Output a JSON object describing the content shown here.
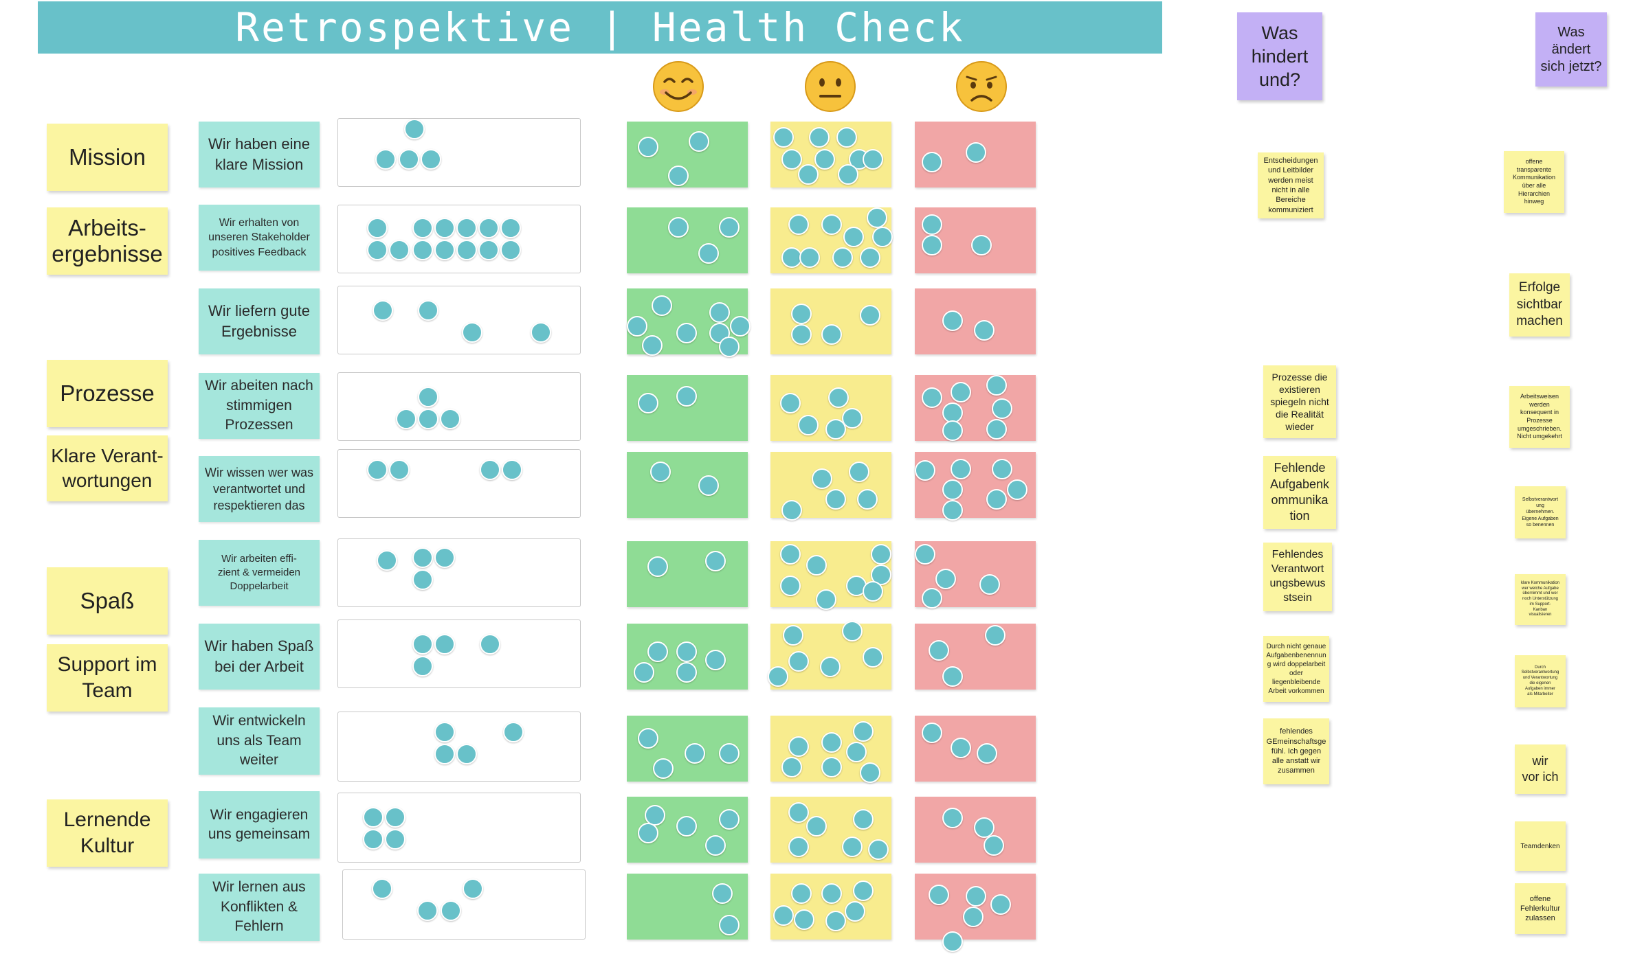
{
  "header": {
    "title": "Retrospektive | Health Check"
  },
  "moods": [
    "happy-face-icon",
    "neutral-face-icon",
    "sad-face-icon"
  ],
  "categories": {
    "mission": "Mission",
    "arbeit1": "Arbeits-",
    "arbeit2": "ergebnisse",
    "prozesse": "Prozesse",
    "klare1": "Klare Verant-",
    "klare2": "wortungen",
    "spass": "Spaß",
    "support1": "Support im",
    "support2": "Team",
    "lern1": "Lernende",
    "lern2": "Kultur"
  },
  "questions": [
    {
      "l1": "Wir haben eine",
      "l2": "klare Mission",
      "l3": ""
    },
    {
      "l1": "Wir erhalten von",
      "l2": "unseren Stakeholder",
      "l3": "positives Feedback"
    },
    {
      "l1": "Wir liefern gute",
      "l2": "Ergebnisse",
      "l3": ""
    },
    {
      "l1": "Wir abeiten nach",
      "l2": "stimmigen",
      "l3": "Prozessen"
    },
    {
      "l1": "Wir wissen wer was",
      "l2": "verantwortet und",
      "l3": "respektieren das"
    },
    {
      "l1": "Wir arbeiten effi-",
      "l2": "zient & vermeiden",
      "l3": "Doppelarbeit"
    },
    {
      "l1": "Wir haben Spaß",
      "l2": "bei der Arbeit",
      "l3": ""
    },
    {
      "l1": "Wir entwickeln",
      "l2": "uns als Team",
      "l3": "weiter"
    },
    {
      "l1": "Wir engagieren",
      "l2": "uns gemeinsam",
      "l3": ""
    },
    {
      "l1": "Wir lernen aus",
      "l2": "Konflikten &",
      "l3": "Fehlern"
    }
  ],
  "columns": {
    "hindert": {
      "l1": "Was",
      "l2": "hindert",
      "l3": "und?"
    },
    "aendert": {
      "l1": "Was",
      "l2": "ändert",
      "l3": "sich jetzt?"
    }
  },
  "hindert_notes": [
    {
      "l": [
        "Entscheidungen",
        "und Leitbilder",
        "werden meist",
        "nicht in alle",
        "Bereiche",
        "kommuniziert"
      ]
    },
    {
      "l": [
        "Prozesse die",
        "existieren",
        "spiegeln nicht",
        "die Realität",
        "wieder"
      ]
    },
    {
      "l": [
        "Fehlende",
        "Aufgabenk",
        "ommunika",
        "tion"
      ]
    },
    {
      "l": [
        "Fehlendes",
        "Verantwort",
        "ungsbewus",
        "stsein"
      ]
    },
    {
      "l": [
        "Durch nicht genaue",
        "Aufgabenbenennun",
        "g wird doppelarbeit",
        "oder",
        "liegenbleibende",
        "Arbeit vorkommen"
      ]
    },
    {
      "l": [
        "fehlendes",
        "GEmeinschaftsge",
        "fühl. Ich gegen",
        "alle anstatt wir",
        "zusammen"
      ]
    }
  ],
  "aendert_notes": [
    {
      "l": [
        "offene",
        "transparente",
        "Kommunikation",
        "über alle",
        "Hierarchien",
        "hinweg"
      ]
    },
    {
      "l": [
        "Erfolge",
        "sichtbar",
        "machen"
      ]
    },
    {
      "l": [
        "Arbeitsweisen",
        "werden",
        "konsequent in",
        "Prozesse",
        "umgeschrieben.",
        "Nicht umgekehrt"
      ]
    },
    {
      "l": [
        "Selbstverantwort",
        "ung",
        "übernehmen.",
        "Eigene Aufgaben",
        "so benennen"
      ]
    },
    {
      "l": [
        "klare Kommunikation",
        "wer welche Aufgabe",
        "übernimmt und wer",
        "noch Unterstützung",
        "im Support-",
        "Kanban",
        "visualisieren"
      ]
    },
    {
      "l": [
        "Durch",
        "Selbstverantwortung",
        "und Verantwortung",
        "die eigenen",
        "Aufgaben immer",
        "als Mitarbeiter"
      ]
    },
    {
      "l": [
        "wir",
        "vor ich"
      ]
    },
    {
      "l": [
        "Teamdenken"
      ]
    },
    {
      "l": [
        "offene",
        "Fehlerkultur",
        "zulassen"
      ]
    }
  ]
}
